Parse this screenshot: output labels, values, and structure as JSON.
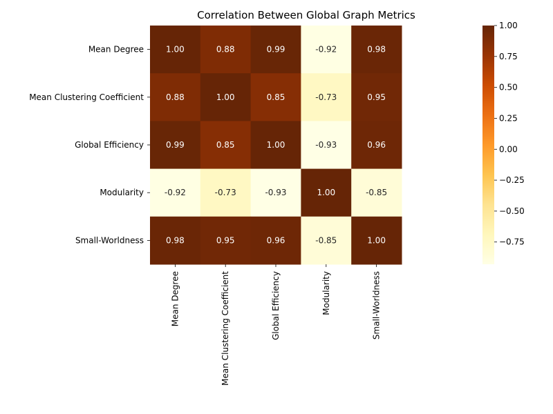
{
  "chart_data": {
    "type": "heatmap",
    "title": "Correlation Between Global Graph Metrics",
    "xlabel": "",
    "ylabel": "",
    "labels": [
      "Mean Degree",
      "Mean Clustering Coefficient",
      "Global Efficiency",
      "Modularity",
      "Small-Worldness"
    ],
    "matrix": [
      [
        1.0,
        0.88,
        0.99,
        -0.92,
        0.98
      ],
      [
        0.88,
        1.0,
        0.85,
        -0.73,
        0.95
      ],
      [
        0.99,
        0.85,
        1.0,
        -0.93,
        0.96
      ],
      [
        -0.92,
        -0.73,
        -0.93,
        1.0,
        -0.85
      ],
      [
        0.98,
        0.95,
        0.96,
        -0.85,
        1.0
      ]
    ],
    "value_format": "0.00",
    "colormap": "YlOrBr",
    "vmin": -0.93,
    "vmax": 1.0,
    "colorbar_ticks": [
      1.0,
      0.75,
      0.5,
      0.25,
      0.0,
      -0.25,
      -0.5,
      -0.75
    ],
    "colorbar_tick_labels": [
      "1.00",
      "0.75",
      "0.50",
      "0.25",
      "0.00",
      "−0.25",
      "−0.50",
      "−0.75"
    ],
    "colors": {
      "stops": [
        "#ffffe5",
        "#fff7bc",
        "#fee391",
        "#fec44f",
        "#fe9929",
        "#ec7014",
        "#cc4c02",
        "#993404",
        "#662506"
      ],
      "label_light": "#ffffff",
      "label_dark": "#262626"
    }
  }
}
